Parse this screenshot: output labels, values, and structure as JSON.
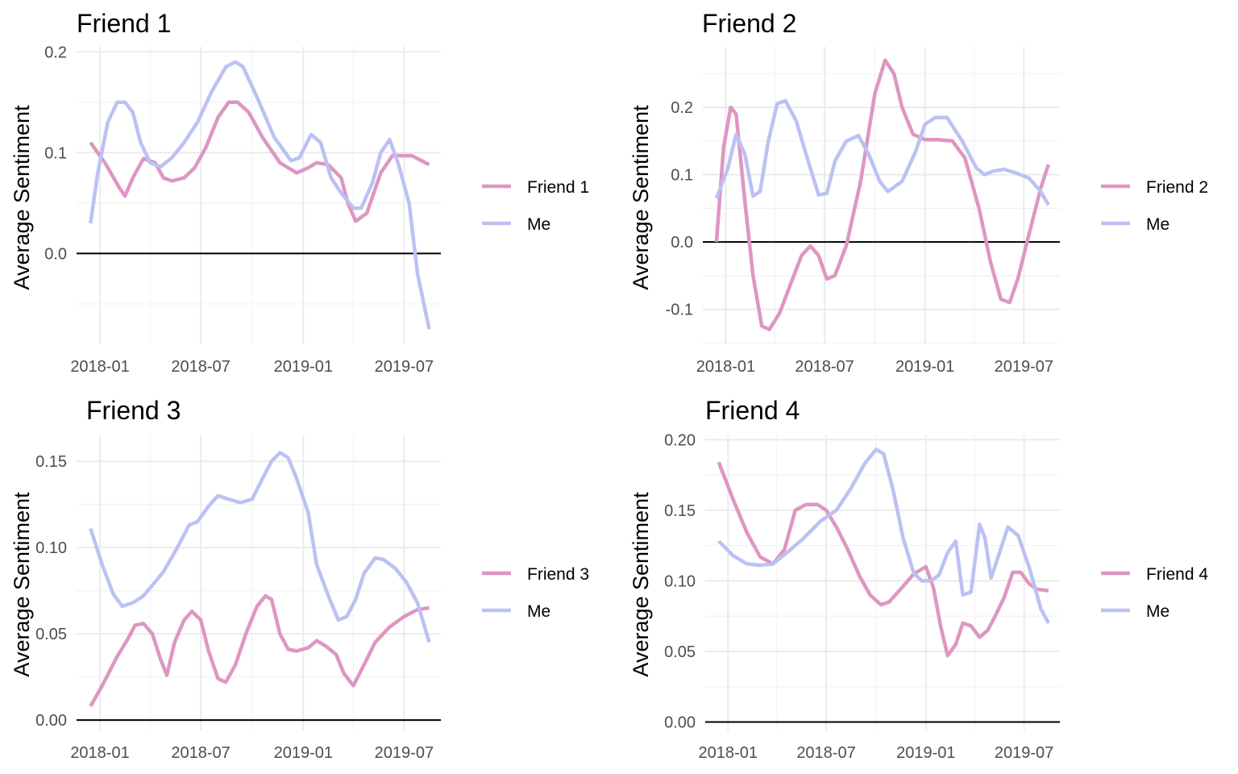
{
  "colors": {
    "friend": "#DE96C2",
    "me": "#BCC1F4"
  },
  "chart_data": [
    {
      "type": "line",
      "title": "Friend 1",
      "xlabel": "",
      "ylabel": "Average Sentiment",
      "x_ticks": [
        "2018-01",
        "2018-07",
        "2019-01",
        "2019-07"
      ],
      "y_ticks": [
        "0.0",
        "0.1",
        "0.2"
      ],
      "ylim": [
        -0.09,
        0.205
      ],
      "legend_position": "right",
      "series": [
        {
          "name": "Friend 1",
          "color": "#DE96C2",
          "x": [
            "2017-12-15",
            "2018-01-10",
            "2018-02-05",
            "2018-02-15",
            "2018-03-01",
            "2018-03-20",
            "2018-04-10",
            "2018-04-25",
            "2018-05-10",
            "2018-06-01",
            "2018-06-20",
            "2018-07-10",
            "2018-08-01",
            "2018-08-20",
            "2018-09-05",
            "2018-09-25",
            "2018-10-20",
            "2018-11-20",
            "2018-12-20",
            "2019-01-10",
            "2019-01-25",
            "2019-02-15",
            "2019-03-10",
            "2019-03-22",
            "2019-04-05",
            "2019-04-25",
            "2019-05-20",
            "2019-06-10",
            "2019-07-15",
            "2019-08-15"
          ],
          "y": [
            0.11,
            0.09,
            0.065,
            0.057,
            0.075,
            0.094,
            0.09,
            0.075,
            0.072,
            0.075,
            0.085,
            0.105,
            0.135,
            0.15,
            0.15,
            0.14,
            0.115,
            0.09,
            0.08,
            0.085,
            0.09,
            0.088,
            0.075,
            0.05,
            0.032,
            0.04,
            0.08,
            0.097,
            0.097,
            0.088
          ]
        },
        {
          "name": "Me",
          "color": "#BCC1F4",
          "x": [
            "2017-12-15",
            "2017-12-28",
            "2018-01-15",
            "2018-02-01",
            "2018-02-15",
            "2018-03-01",
            "2018-03-15",
            "2018-04-01",
            "2018-04-20",
            "2018-05-10",
            "2018-06-01",
            "2018-06-25",
            "2018-07-20",
            "2018-08-15",
            "2018-09-01",
            "2018-09-15",
            "2018-10-10",
            "2018-11-10",
            "2018-12-10",
            "2018-12-25",
            "2019-01-15",
            "2019-02-01",
            "2019-02-20",
            "2019-03-10",
            "2019-04-01",
            "2019-04-15",
            "2019-05-05",
            "2019-05-20",
            "2019-06-05",
            "2019-06-20",
            "2019-07-10",
            "2019-07-25",
            "2019-08-15"
          ],
          "y": [
            0.03,
            0.08,
            0.13,
            0.15,
            0.15,
            0.14,
            0.11,
            0.09,
            0.086,
            0.095,
            0.11,
            0.13,
            0.16,
            0.185,
            0.19,
            0.185,
            0.155,
            0.115,
            0.092,
            0.095,
            0.118,
            0.11,
            0.075,
            0.06,
            0.045,
            0.045,
            0.07,
            0.1,
            0.113,
            0.09,
            0.05,
            -0.02,
            -0.075
          ]
        }
      ]
    },
    {
      "type": "line",
      "title": "Friend 2",
      "xlabel": "",
      "ylabel": "Average Sentiment",
      "x_ticks": [
        "2018-01",
        "2018-07",
        "2019-01",
        "2019-07"
      ],
      "y_ticks": [
        "-0.1",
        "0.0",
        "0.1",
        "0.2"
      ],
      "ylim": [
        -0.152,
        0.29
      ],
      "legend_position": "right",
      "series": [
        {
          "name": "Friend 2",
          "color": "#DE96C2",
          "x": [
            "2017-12-15",
            "2017-12-28",
            "2018-01-10",
            "2018-01-20",
            "2018-02-05",
            "2018-02-20",
            "2018-03-08",
            "2018-03-22",
            "2018-04-10",
            "2018-05-01",
            "2018-05-20",
            "2018-06-05",
            "2018-06-20",
            "2018-07-05",
            "2018-07-20",
            "2018-08-10",
            "2018-09-05",
            "2018-10-01",
            "2018-10-20",
            "2018-11-05",
            "2018-11-20",
            "2018-12-10",
            "2019-01-01",
            "2019-01-25",
            "2019-02-20",
            "2019-03-15",
            "2019-04-10",
            "2019-05-01",
            "2019-05-20",
            "2019-06-05",
            "2019-06-20",
            "2019-07-10",
            "2019-08-01",
            "2019-08-15"
          ],
          "y": [
            0,
            0.14,
            0.2,
            0.19,
            0.06,
            -0.05,
            -0.125,
            -0.13,
            -0.105,
            -0.06,
            -0.02,
            -0.006,
            -0.02,
            -0.055,
            -0.05,
            -0.005,
            0.09,
            0.22,
            0.27,
            0.25,
            0.2,
            0.16,
            0.152,
            0.152,
            0.15,
            0.125,
            0.05,
            -0.03,
            -0.085,
            -0.09,
            -0.055,
            0.01,
            0.08,
            0.115
          ]
        },
        {
          "name": "Me",
          "color": "#BCC1F4",
          "x": [
            "2017-12-15",
            "2018-01-05",
            "2018-01-20",
            "2018-02-05",
            "2018-02-20",
            "2018-03-05",
            "2018-03-20",
            "2018-04-05",
            "2018-04-20",
            "2018-05-10",
            "2018-06-01",
            "2018-06-20",
            "2018-07-05",
            "2018-07-20",
            "2018-08-10",
            "2018-09-01",
            "2018-09-20",
            "2018-10-10",
            "2018-10-25",
            "2018-11-20",
            "2018-12-15",
            "2019-01-01",
            "2019-01-20",
            "2019-02-10",
            "2019-03-10",
            "2019-04-05",
            "2019-04-20",
            "2019-05-05",
            "2019-05-25",
            "2019-06-15",
            "2019-07-10",
            "2019-08-01",
            "2019-08-15"
          ],
          "y": [
            0.065,
            0.11,
            0.16,
            0.13,
            0.068,
            0.075,
            0.15,
            0.205,
            0.21,
            0.18,
            0.12,
            0.07,
            0.072,
            0.12,
            0.15,
            0.158,
            0.13,
            0.09,
            0.075,
            0.09,
            0.135,
            0.175,
            0.185,
            0.185,
            0.15,
            0.11,
            0.1,
            0.105,
            0.108,
            0.103,
            0.095,
            0.075,
            0.055
          ]
        }
      ]
    },
    {
      "type": "line",
      "title": "Friend 3",
      "xlabel": "",
      "ylabel": "Average Sentiment",
      "x_ticks": [
        "2018-01",
        "2018-07",
        "2019-01",
        "2019-07"
      ],
      "y_ticks": [
        "0.00",
        "0.05",
        "0.10",
        "0.15"
      ],
      "ylim": [
        -0.006,
        0.165
      ],
      "legend_position": "right",
      "series": [
        {
          "name": "Friend 3",
          "color": "#DE96C2",
          "x": [
            "2017-12-15",
            "2018-01-05",
            "2018-02-01",
            "2018-02-20",
            "2018-03-05",
            "2018-03-20",
            "2018-04-05",
            "2018-04-20",
            "2018-05-01",
            "2018-05-15",
            "2018-06-01",
            "2018-06-15",
            "2018-07-01",
            "2018-07-15",
            "2018-08-01",
            "2018-08-15",
            "2018-09-01",
            "2018-09-20",
            "2018-10-10",
            "2018-10-25",
            "2018-11-05",
            "2018-11-20",
            "2018-12-05",
            "2018-12-20",
            "2019-01-10",
            "2019-01-25",
            "2019-02-10",
            "2019-03-01",
            "2019-03-15",
            "2019-04-01",
            "2019-04-20",
            "2019-05-10",
            "2019-06-05",
            "2019-07-01",
            "2019-07-25",
            "2019-08-15"
          ],
          "y": [
            0.008,
            0.02,
            0.037,
            0.047,
            0.055,
            0.056,
            0.05,
            0.035,
            0.026,
            0.045,
            0.058,
            0.063,
            0.058,
            0.04,
            0.024,
            0.022,
            0.032,
            0.05,
            0.066,
            0.072,
            0.07,
            0.05,
            0.041,
            0.04,
            0.042,
            0.046,
            0.043,
            0.038,
            0.027,
            0.02,
            0.032,
            0.045,
            0.054,
            0.06,
            0.064,
            0.065
          ]
        },
        {
          "name": "Me",
          "color": "#BCC1F4",
          "x": [
            "2017-12-15",
            "2018-01-05",
            "2018-01-25",
            "2018-02-10",
            "2018-03-01",
            "2018-03-20",
            "2018-04-10",
            "2018-04-25",
            "2018-05-20",
            "2018-06-10",
            "2018-06-25",
            "2018-07-15",
            "2018-08-01",
            "2018-08-20",
            "2018-09-10",
            "2018-10-01",
            "2018-10-20",
            "2018-11-05",
            "2018-11-20",
            "2018-12-05",
            "2018-12-20",
            "2019-01-10",
            "2019-01-25",
            "2019-02-15",
            "2019-03-05",
            "2019-03-20",
            "2019-04-05",
            "2019-04-20",
            "2019-05-10",
            "2019-05-25",
            "2019-06-15",
            "2019-07-05",
            "2019-07-25",
            "2019-08-15"
          ],
          "y": [
            0.111,
            0.09,
            0.073,
            0.066,
            0.068,
            0.072,
            0.08,
            0.086,
            0.1,
            0.113,
            0.115,
            0.124,
            0.13,
            0.128,
            0.126,
            0.128,
            0.14,
            0.15,
            0.155,
            0.152,
            0.14,
            0.12,
            0.09,
            0.072,
            0.058,
            0.06,
            0.07,
            0.085,
            0.094,
            0.093,
            0.088,
            0.08,
            0.068,
            0.045
          ]
        }
      ]
    },
    {
      "type": "line",
      "title": "Friend 4",
      "xlabel": "",
      "ylabel": "Average Sentiment",
      "x_ticks": [
        "2018-01",
        "2018-07",
        "2019-01",
        "2019-07"
      ],
      "y_ticks": [
        "0.00",
        "0.05",
        "0.10",
        "0.15",
        "0.20"
      ],
      "ylim": [
        -0.006,
        0.203
      ],
      "legend_position": "right",
      "series": [
        {
          "name": "Friend 4",
          "color": "#DE96C2",
          "x": [
            "2017-12-15",
            "2018-01-10",
            "2018-02-05",
            "2018-03-01",
            "2018-03-25",
            "2018-04-15",
            "2018-05-05",
            "2018-05-25",
            "2018-06-15",
            "2018-07-01",
            "2018-07-20",
            "2018-08-10",
            "2018-09-01",
            "2018-09-20",
            "2018-10-10",
            "2018-10-25",
            "2018-11-15",
            "2018-12-10",
            "2019-01-01",
            "2019-01-15",
            "2019-01-28",
            "2019-02-10",
            "2019-02-25",
            "2019-03-10",
            "2019-03-25",
            "2019-04-10",
            "2019-04-25",
            "2019-05-10",
            "2019-05-25",
            "2019-06-10",
            "2019-06-25",
            "2019-07-10",
            "2019-07-25",
            "2019-08-15"
          ],
          "y": [
            0.184,
            0.158,
            0.134,
            0.117,
            0.112,
            0.122,
            0.15,
            0.154,
            0.154,
            0.15,
            0.138,
            0.122,
            0.103,
            0.09,
            0.083,
            0.085,
            0.094,
            0.105,
            0.11,
            0.095,
            0.068,
            0.047,
            0.055,
            0.07,
            0.068,
            0.06,
            0.065,
            0.076,
            0.088,
            0.106,
            0.106,
            0.098,
            0.094,
            0.093
          ]
        },
        {
          "name": "Me",
          "color": "#BCC1F4",
          "x": [
            "2017-12-15",
            "2018-01-10",
            "2018-02-05",
            "2018-03-01",
            "2018-03-25",
            "2018-04-20",
            "2018-05-20",
            "2018-06-20",
            "2018-07-20",
            "2018-08-15",
            "2018-09-10",
            "2018-10-01",
            "2018-10-15",
            "2018-11-01",
            "2018-11-20",
            "2018-12-10",
            "2018-12-25",
            "2019-01-10",
            "2019-01-25",
            "2019-02-10",
            "2019-02-25",
            "2019-03-10",
            "2019-03-25",
            "2019-04-10",
            "2019-04-20",
            "2019-05-01",
            "2019-05-15",
            "2019-06-01",
            "2019-06-20",
            "2019-07-10",
            "2019-08-01",
            "2019-08-15"
          ],
          "y": [
            0.128,
            0.118,
            0.112,
            0.111,
            0.112,
            0.12,
            0.13,
            0.142,
            0.15,
            0.165,
            0.183,
            0.193,
            0.19,
            0.165,
            0.13,
            0.105,
            0.1,
            0.1,
            0.104,
            0.12,
            0.128,
            0.09,
            0.092,
            0.14,
            0.13,
            0.102,
            0.118,
            0.138,
            0.132,
            0.11,
            0.08,
            0.07
          ]
        }
      ]
    }
  ]
}
